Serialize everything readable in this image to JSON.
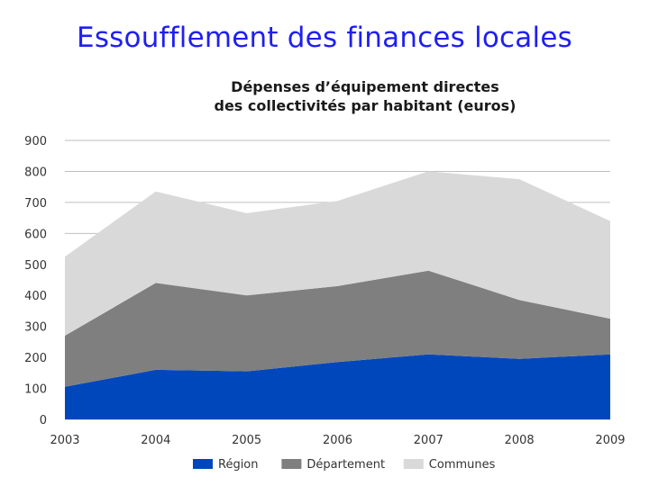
{
  "slide": {
    "title": "Essoufflement des finances locales"
  },
  "chart_data": {
    "type": "area",
    "stacked": true,
    "title_lines": [
      "Dépenses d’équipement directes",
      "des collectivités par habitant (euros)"
    ],
    "xlabel": "",
    "ylabel": "",
    "x": [
      "2003",
      "2004",
      "2005",
      "2006",
      "2007",
      "2008",
      "2009"
    ],
    "ylim": [
      0,
      900
    ],
    "yticks": [
      "0",
      "100",
      "200",
      "300",
      "400",
      "500",
      "600",
      "700",
      "800",
      "900"
    ],
    "grid": true,
    "legend_position": "bottom",
    "series": [
      {
        "name": "Région",
        "color": "#0047bb",
        "values": [
          105,
          160,
          155,
          185,
          210,
          195,
          210
        ]
      },
      {
        "name": "Département",
        "color": "#7f7f7f",
        "values": [
          165,
          280,
          245,
          245,
          270,
          190,
          115
        ]
      },
      {
        "name": "Communes",
        "color": "#d9d9d9",
        "values": [
          255,
          295,
          265,
          275,
          320,
          390,
          315
        ]
      }
    ]
  }
}
